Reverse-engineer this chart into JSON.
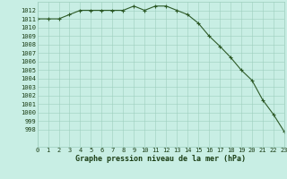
{
  "x": [
    0,
    1,
    2,
    3,
    4,
    5,
    6,
    7,
    8,
    9,
    10,
    11,
    12,
    13,
    14,
    15,
    16,
    17,
    18,
    19,
    20,
    21,
    22,
    23
  ],
  "y": [
    1011,
    1011,
    1011,
    1011.5,
    1012,
    1012,
    1012,
    1012,
    1012,
    1012.5,
    1012,
    1012.5,
    1012.5,
    1012,
    1011.5,
    1010.5,
    1009,
    1007.8,
    1006.5,
    1005,
    1003.8,
    1001.5,
    999.8,
    997.8
  ],
  "line_color": "#2d5a27",
  "marker": "+",
  "marker_color": "#2d5a27",
  "background_color": "#c8eee4",
  "grid_color": "#9ecfbe",
  "xlabel": "Graphe pression niveau de la mer (hPa)",
  "xlabel_color": "#1a3d14",
  "tick_color": "#1a3d14",
  "ylim": [
    996,
    1013
  ],
  "xlim": [
    0,
    23
  ],
  "yticks": [
    998,
    999,
    1000,
    1001,
    1002,
    1003,
    1004,
    1005,
    1006,
    1007,
    1008,
    1009,
    1010,
    1011,
    1012
  ],
  "xticks": [
    0,
    1,
    2,
    3,
    4,
    5,
    6,
    7,
    8,
    9,
    10,
    11,
    12,
    13,
    14,
    15,
    16,
    17,
    18,
    19,
    20,
    21,
    22,
    23
  ],
  "tick_fontsize": 5.0,
  "xlabel_fontsize": 6.0
}
